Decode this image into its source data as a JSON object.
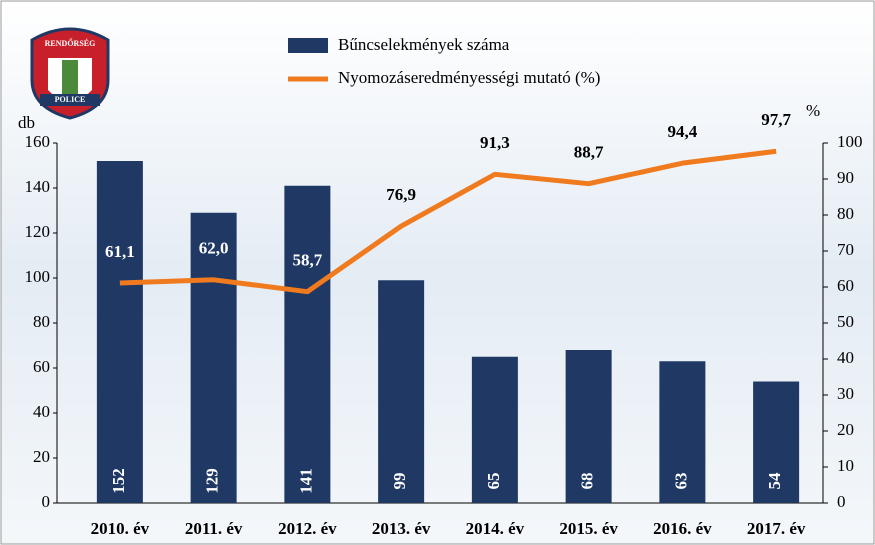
{
  "logo": {
    "top": "RENDŐRSÉG",
    "bottom": "POLICE"
  },
  "chart_data": {
    "type": "bar",
    "categories": [
      "2010. év",
      "2011. év",
      "2012. év",
      "2013. év",
      "2014. év",
      "2015. év",
      "2016. év",
      "2017. év"
    ],
    "series": [
      {
        "name": "Bűncselekmények száma",
        "type": "bar",
        "color": "#1f3864",
        "values": [
          152,
          129,
          141,
          99,
          65,
          68,
          63,
          54
        ]
      },
      {
        "name": "Nyomozáseredményességi mutató (%)",
        "type": "line",
        "axis": "y2",
        "color": "#f07a1e",
        "values": [
          61.1,
          62.0,
          58.7,
          76.9,
          91.3,
          88.7,
          94.4,
          97.7
        ],
        "value_labels": [
          "61,1",
          "62,0",
          "58,7",
          "76,9",
          "91,3",
          "88,7",
          "94,4",
          "97,7"
        ]
      }
    ],
    "y_label": "db",
    "y2_label": "%",
    "ylim": [
      0,
      160
    ],
    "yticks": [
      0,
      20,
      40,
      60,
      80,
      100,
      120,
      140,
      160
    ],
    "y2lim": [
      0,
      100
    ],
    "y2ticks": [
      0,
      10,
      20,
      30,
      40,
      50,
      60,
      70,
      80,
      90,
      100
    ],
    "legend": "top"
  }
}
